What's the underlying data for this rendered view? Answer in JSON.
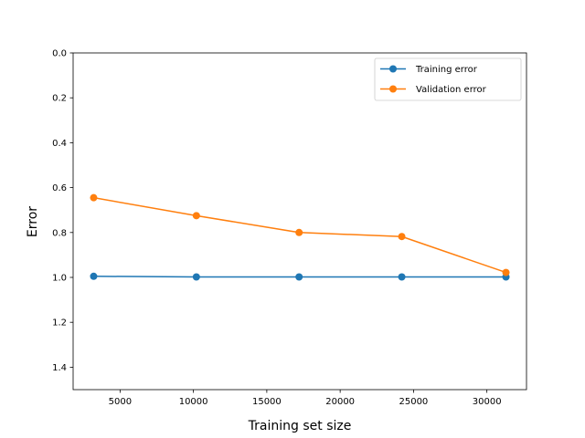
{
  "chart_data": {
    "type": "line",
    "title": "",
    "xlabel": "Training set size",
    "ylabel": "Error",
    "xlim": [
      1800,
      32700
    ],
    "ylim": [
      1.5,
      0.0
    ],
    "y_axis_inverted": true,
    "grid": false,
    "legend_position": "top-right",
    "x_ticks": [
      5000,
      10000,
      15000,
      20000,
      25000,
      30000
    ],
    "x_tick_labels": [
      "5000",
      "10000",
      "15000",
      "20000",
      "25000",
      "30000"
    ],
    "y_ticks": [
      0.0,
      0.2,
      0.4,
      0.6,
      0.8,
      1.0,
      1.2,
      1.4
    ],
    "y_tick_labels": [
      "0.0",
      "0.2",
      "0.4",
      "0.6",
      "0.8",
      "1.0",
      "1.2",
      "1.4"
    ],
    "x": [
      3200,
      10200,
      17200,
      24200,
      31300
    ],
    "series": [
      {
        "name": "Training error",
        "color": "#1f77b4",
        "marker": "circle",
        "values": [
          0.995,
          0.998,
          0.998,
          0.998,
          0.998
        ]
      },
      {
        "name": "Validation error",
        "color": "#ff7f0e",
        "marker": "circle",
        "values": [
          0.645,
          0.725,
          0.8,
          0.818,
          0.978
        ]
      }
    ]
  }
}
